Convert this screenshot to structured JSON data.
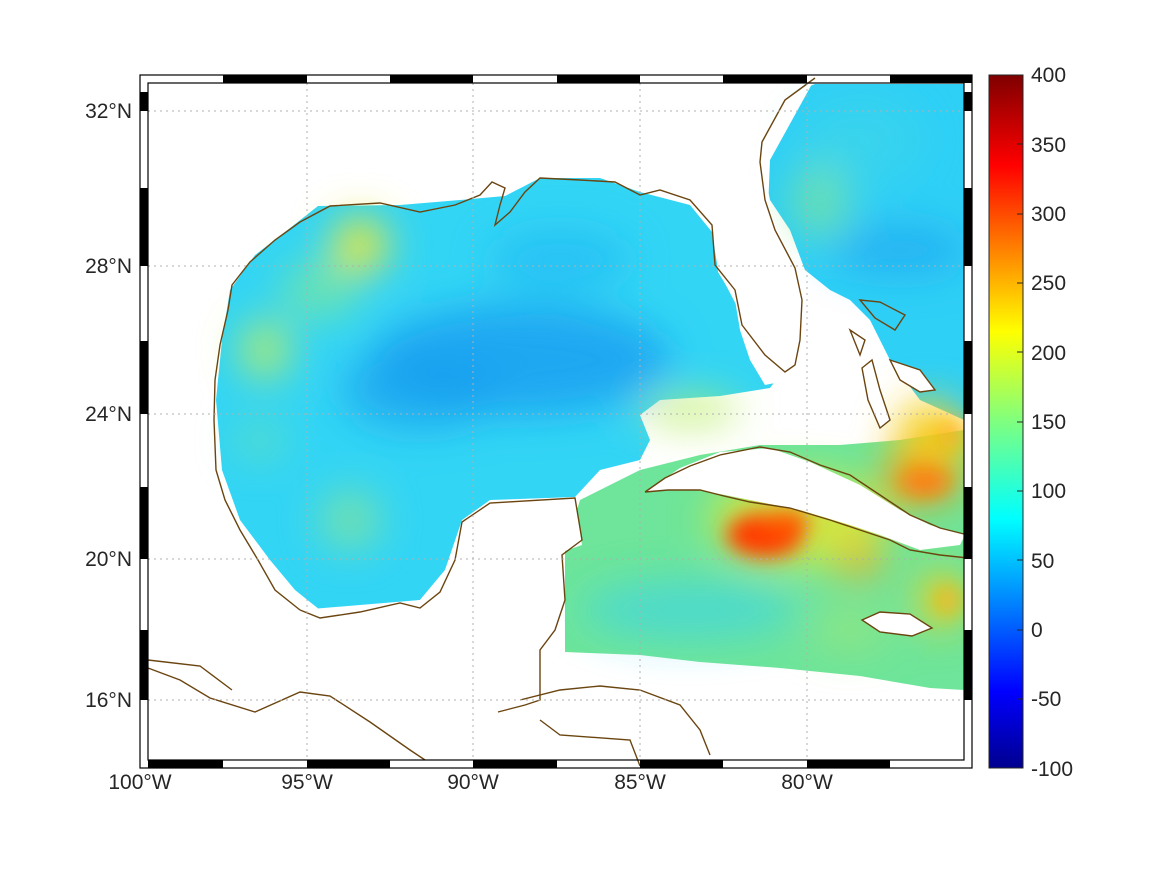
{
  "map": {
    "projection": "mercator",
    "lon_range": [
      "100°W",
      "75°W"
    ],
    "lat_range": [
      "14°N",
      "33°N"
    ],
    "frame": "black-white checkered border",
    "grid": "dotted gray",
    "coastline_color": "#6b4510",
    "x_tick_labels": [
      "100°W",
      "95°W",
      "90°W",
      "85°W",
      "80°W"
    ],
    "y_tick_labels": [
      "32°N",
      "28°N",
      "24°N",
      "20°N",
      "16°N"
    ]
  },
  "colorbar": {
    "colormap": "jet",
    "range": [
      -100,
      400
    ],
    "tick_labels": [
      "400",
      "350",
      "300",
      "250",
      "200",
      "150",
      "100",
      "50",
      "0",
      "-50",
      "-100"
    ]
  },
  "highlights": [
    {
      "feature": "warm patch south of Cuba",
      "value_approx": 300
    },
    {
      "feature": "warm patch north of Hispaniola/Bahamas",
      "value_approx": 260
    },
    {
      "feature": "central Gulf minimum",
      "value_approx": 60
    }
  ]
}
